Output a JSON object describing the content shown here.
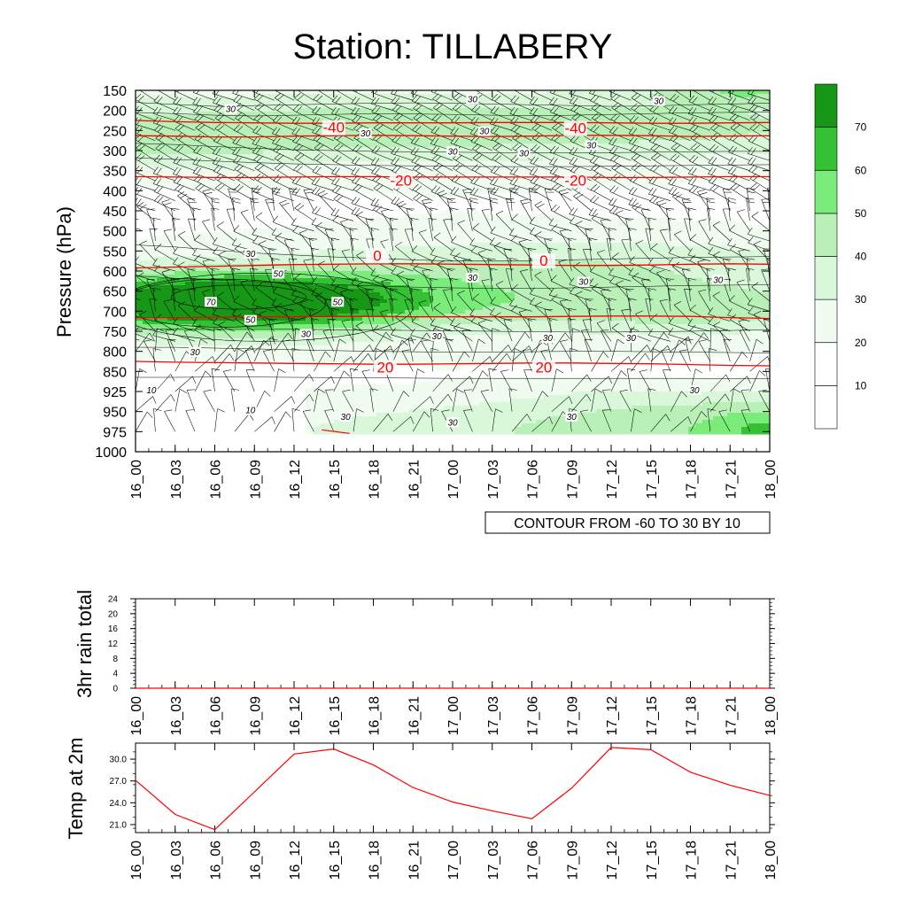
{
  "title": "Station: TILLABERY",
  "time_labels": [
    "16_00",
    "16_03",
    "16_06",
    "16_09",
    "16_12",
    "16_15",
    "16_18",
    "16_21",
    "17_00",
    "17_03",
    "17_06",
    "17_09",
    "17_12",
    "17_15",
    "17_18",
    "17_21",
    "18_00"
  ],
  "info_box": "CONTOUR FROM -60 TO 30 BY 10",
  "colors": {
    "fill_levels": [
      "#ffffff",
      "#f0fcf0",
      "#d9f8d9",
      "#b8f0b8",
      "#7aec7a",
      "#34c234",
      "#169816"
    ],
    "temp_contour": "#ff0000",
    "line": "#000000"
  },
  "chart_data": [
    {
      "type": "heatmap",
      "subtype": "time-pressure cross-section with filled relative-humidity contours, red temperature contours and wind barbs",
      "title": "Station: TILLABERY",
      "xlabel": "",
      "ylabel": "Pressure (hPa)",
      "x": [
        "16_00",
        "16_03",
        "16_06",
        "16_09",
        "16_12",
        "16_15",
        "16_18",
        "16_21",
        "17_00",
        "17_03",
        "17_06",
        "17_09",
        "17_12",
        "17_15",
        "17_18",
        "17_21",
        "18_00"
      ],
      "y_ticks": [
        150,
        200,
        250,
        300,
        350,
        400,
        450,
        500,
        550,
        600,
        650,
        700,
        750,
        800,
        850,
        925,
        950,
        975,
        1000
      ],
      "colorbar": {
        "levels": [
          10,
          20,
          30,
          40,
          50,
          60,
          70
        ],
        "labels": [
          "10",
          "20",
          "30",
          "40",
          "50",
          "60",
          "70"
        ]
      },
      "fill_contour_labels": [
        {
          "label": "30",
          "t": 2.4,
          "p": 200
        },
        {
          "label": "30",
          "t": 8.5,
          "p": 175
        },
        {
          "label": "30",
          "t": 13.2,
          "p": 180
        },
        {
          "label": "30",
          "t": 5.8,
          "p": 260
        },
        {
          "label": "30",
          "t": 8.8,
          "p": 255
        },
        {
          "label": "30",
          "t": 11.5,
          "p": 290
        },
        {
          "label": "30",
          "t": 8.0,
          "p": 305
        },
        {
          "label": "30",
          "t": 9.8,
          "p": 310
        },
        {
          "label": "30",
          "t": 2.9,
          "p": 560
        },
        {
          "label": "50",
          "t": 3.6,
          "p": 610
        },
        {
          "label": "30",
          "t": 8.5,
          "p": 620
        },
        {
          "label": "30",
          "t": 11.3,
          "p": 630
        },
        {
          "label": "30",
          "t": 14.7,
          "p": 625
        },
        {
          "label": "70",
          "t": 1.9,
          "p": 680
        },
        {
          "label": "50",
          "t": 5.1,
          "p": 680
        },
        {
          "label": "50",
          "t": 2.9,
          "p": 725
        },
        {
          "label": "30",
          "t": 4.3,
          "p": 760
        },
        {
          "label": "30",
          "t": 7.6,
          "p": 765
        },
        {
          "label": "30",
          "t": 10.4,
          "p": 770
        },
        {
          "label": "30",
          "t": 12.5,
          "p": 770
        },
        {
          "label": "30",
          "t": 1.5,
          "p": 805
        },
        {
          "label": "10",
          "t": 0.4,
          "p": 925
        },
        {
          "label": "30",
          "t": 14.1,
          "p": 925
        },
        {
          "label": "10",
          "t": 2.9,
          "p": 950
        },
        {
          "label": "30",
          "t": 5.3,
          "p": 958
        },
        {
          "label": "30",
          "t": 8.0,
          "p": 965
        },
        {
          "label": "30",
          "t": 11.0,
          "p": 958
        }
      ],
      "temperature_contours": [
        {
          "value": -40,
          "p": [
            225,
            228,
            230,
            231,
            232,
            232,
            231,
            231,
            231,
            230,
            230,
            230,
            231,
            232,
            232,
            231,
            230
          ]
        },
        {
          "value": -40,
          "p": [
            263,
            264,
            266,
            266,
            264,
            263,
            262,
            263,
            264,
            265,
            264,
            262,
            262,
            263,
            265,
            264,
            263
          ]
        },
        {
          "value": -20,
          "p": [
            365,
            366,
            367,
            367,
            366,
            365,
            365,
            366,
            366,
            366,
            366,
            366,
            367,
            367,
            366,
            365,
            365
          ]
        },
        {
          "value": 0,
          "p": [
            592,
            590,
            588,
            586,
            584,
            583,
            582,
            582,
            583,
            584,
            585,
            586,
            586,
            585,
            583,
            582,
            583
          ]
        },
        {
          "value": 0,
          "p": [
            716,
            716,
            715,
            714,
            714,
            713,
            713,
            714,
            714,
            714,
            714,
            713,
            712,
            712,
            713,
            716,
            718
          ]
        },
        {
          "value": 20,
          "p": [
            825,
            827,
            828,
            829,
            830,
            831,
            832,
            832,
            831,
            830,
            829,
            829,
            830,
            831,
            833,
            835,
            836
          ]
        }
      ],
      "temperature_contour_labels": [
        {
          "label": "-40",
          "t": 5.0,
          "p": 253
        },
        {
          "label": "-40",
          "t": 11.1,
          "p": 255
        },
        {
          "label": "-20",
          "t": 6.7,
          "p": 385
        },
        {
          "label": "-20",
          "t": 11.1,
          "p": 385
        },
        {
          "label": "0",
          "t": 6.1,
          "p": 572
        },
        {
          "label": "0",
          "t": 10.3,
          "p": 585
        },
        {
          "label": "20",
          "t": 6.3,
          "p": 850
        },
        {
          "label": "20",
          "t": 10.3,
          "p": 850
        }
      ]
    },
    {
      "type": "line",
      "title": "",
      "xlabel": "",
      "ylabel": "3hr rain total",
      "x": [
        "16_00",
        "16_03",
        "16_06",
        "16_09",
        "16_12",
        "16_15",
        "16_18",
        "16_21",
        "17_00",
        "17_03",
        "17_06",
        "17_09",
        "17_12",
        "17_15",
        "17_18",
        "17_21",
        "18_00"
      ],
      "ylim": [
        0,
        24
      ],
      "y_ticks": [
        0,
        4,
        8,
        12,
        16,
        20,
        24
      ],
      "series": [
        {
          "values": [
            0,
            0,
            0,
            0,
            0,
            0,
            0,
            0,
            0,
            0,
            0,
            0,
            0,
            0,
            0,
            0,
            0
          ]
        }
      ]
    },
    {
      "type": "line",
      "title": "",
      "xlabel": "",
      "ylabel": "Temp at 2m",
      "x": [
        "16_00",
        "16_03",
        "16_06",
        "16_09",
        "16_12",
        "16_15",
        "16_18",
        "16_21",
        "17_00",
        "17_03",
        "17_06",
        "17_09",
        "17_12",
        "17_15",
        "17_18",
        "17_21",
        "18_00"
      ],
      "ylim": [
        19.9,
        32.2
      ],
      "y_ticks": [
        21.0,
        24.0,
        27.0,
        30.0
      ],
      "y_tick_labels": [
        "21.0",
        "24.0",
        "27.0",
        "30.0"
      ],
      "series": [
        {
          "values": [
            27.1,
            22.4,
            20.3,
            25.5,
            30.7,
            31.4,
            29.2,
            26.1,
            24.1,
            22.9,
            21.8,
            26.0,
            31.6,
            31.3,
            28.2,
            26.4,
            25.0
          ]
        }
      ]
    }
  ]
}
